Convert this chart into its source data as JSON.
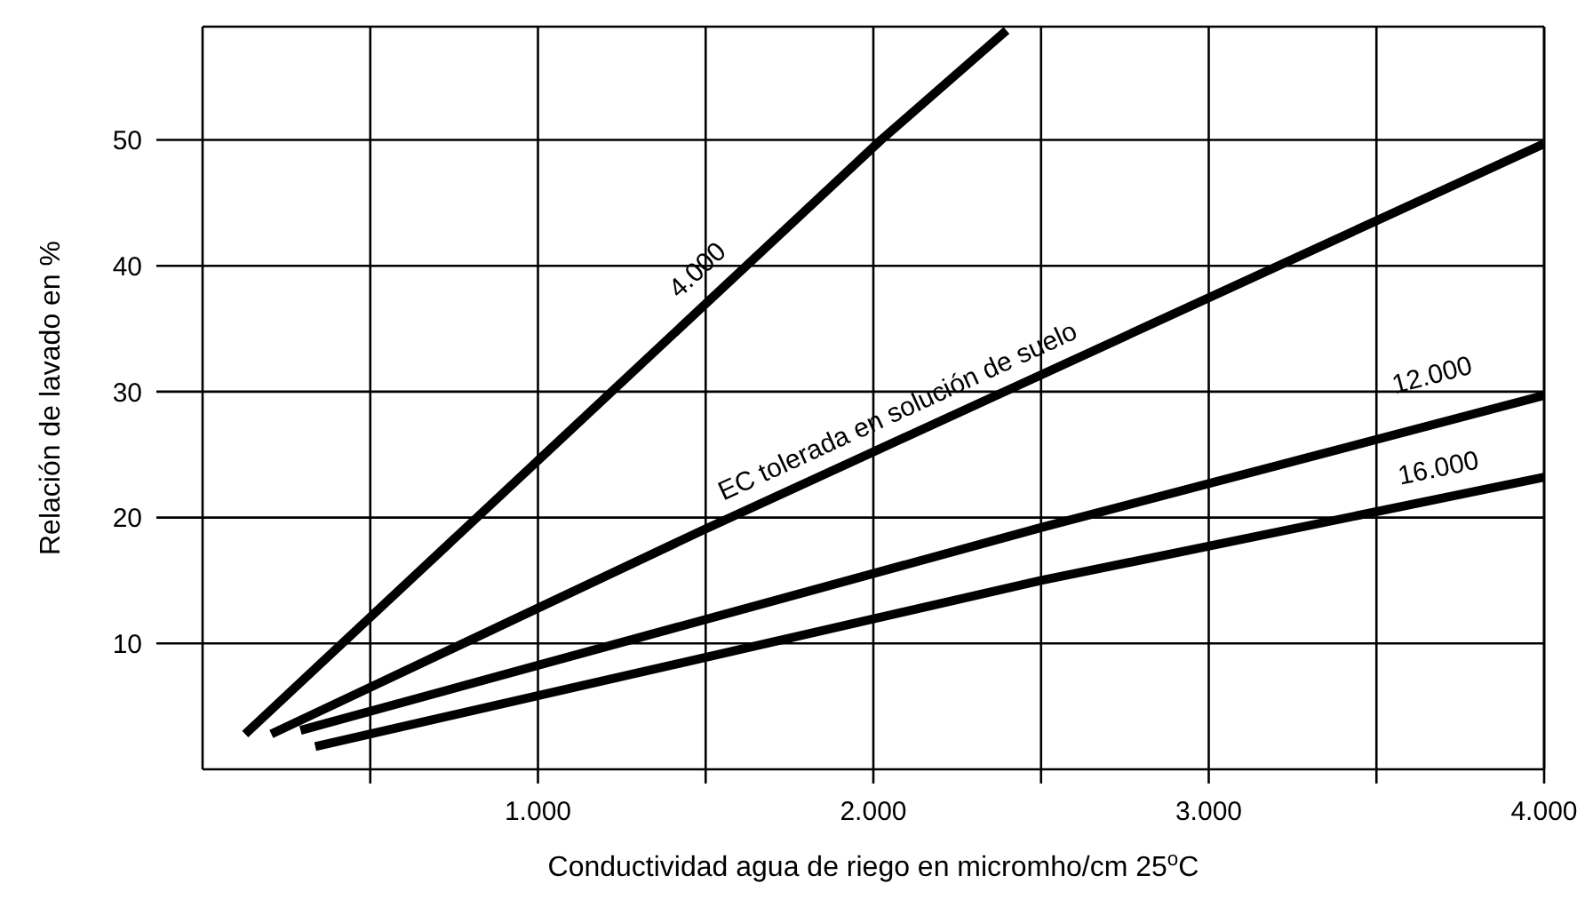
{
  "chart_data": {
    "type": "line",
    "xlabel": "Conductividad agua de riego en micromho/cm 25$^{o}$C",
    "ylabel": "Relación de lavado en %",
    "series": [
      {
        "name": "4.000",
        "color": "#000000",
        "x": [
          127,
          2023,
          2397
        ],
        "values": [
          2.8,
          50,
          58.7
        ]
      },
      {
        "name": "EC tolerada en solución de suelo",
        "color": "#000000",
        "x": [
          205,
          1492,
          4000
        ],
        "values": [
          2.8,
          19,
          49.7
        ]
      },
      {
        "name": "12.000",
        "color": "#000000",
        "x": [
          292,
          2500,
          4000
        ],
        "values": [
          3.1,
          19.2,
          29.7
        ]
      },
      {
        "name": "16.000",
        "color": "#000000",
        "x": [
          336,
          2500,
          4000
        ],
        "values": [
          1.8,
          15,
          23.2
        ]
      }
    ],
    "xlim": [
      0,
      4000
    ],
    "ylim": [
      0,
      59
    ],
    "xticks": [
      {
        "value": 500,
        "label": null
      },
      {
        "value": 1000,
        "label": "1.000"
      },
      {
        "value": 1500,
        "label": null
      },
      {
        "value": 2000,
        "label": "2.000"
      },
      {
        "value": 2500,
        "label": null
      },
      {
        "value": 3000,
        "label": "3.000"
      },
      {
        "value": 3500,
        "label": null
      },
      {
        "value": 4000,
        "label": "4.000"
      }
    ],
    "yticks": [
      10,
      20,
      30,
      40,
      50
    ],
    "grid": true,
    "marker": "none",
    "line_style": "solid"
  }
}
